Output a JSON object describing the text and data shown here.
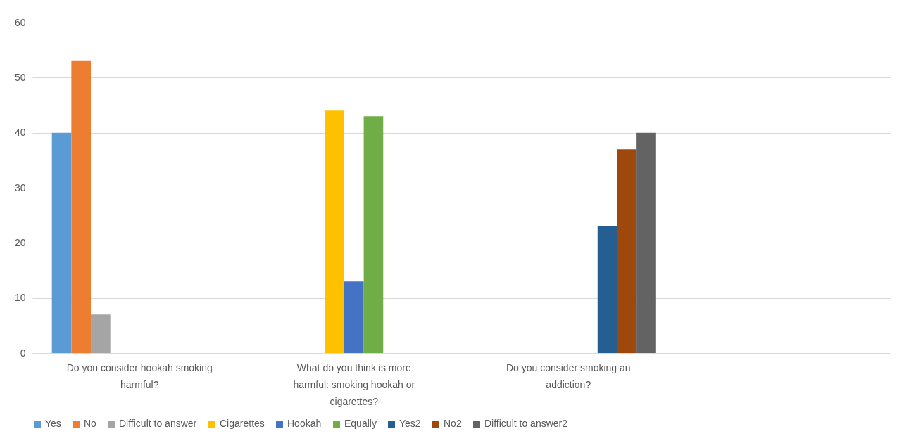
{
  "chart_data": {
    "type": "bar",
    "categories": [
      "Do you consider hookah smoking harmful?",
      "What do you think is more harmful: smoking hookah or cigarettes?",
      "Do you consider smoking an addiction?",
      null
    ],
    "series": [
      {
        "name": "Yes",
        "color": "#5b9bd5",
        "values": [
          40,
          null,
          null,
          null
        ]
      },
      {
        "name": "No",
        "color": "#ed7d31",
        "values": [
          53,
          null,
          null,
          null
        ]
      },
      {
        "name": "Difficult to answer",
        "color": "#a5a5a5",
        "values": [
          7,
          null,
          null,
          null
        ]
      },
      {
        "name": "Cigarettes",
        "color": "#ffc000",
        "values": [
          null,
          44,
          null,
          null
        ]
      },
      {
        "name": "Hookah",
        "color": "#4472c4",
        "values": [
          null,
          13,
          null,
          null
        ]
      },
      {
        "name": "Equally",
        "color": "#70ad47",
        "values": [
          null,
          43,
          null,
          null
        ]
      },
      {
        "name": "Yes2",
        "color": "#255e91",
        "values": [
          null,
          null,
          23,
          null
        ]
      },
      {
        "name": "No2",
        "color": "#9e480e",
        "values": [
          null,
          null,
          37,
          null
        ]
      },
      {
        "name": "Difficult to answer2",
        "color": "#636363",
        "values": [
          null,
          null,
          40,
          null
        ]
      }
    ],
    "ylim": [
      0,
      60
    ],
    "yticks": [
      0,
      10,
      20,
      30,
      40,
      50,
      60
    ],
    "grid": "y",
    "legend": "bottom"
  }
}
